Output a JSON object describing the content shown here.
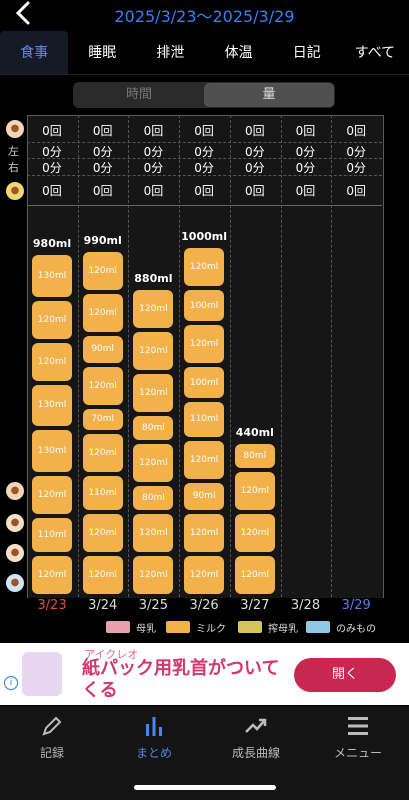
{
  "header": {
    "date_range": "2025/3/23〜2025/3/29"
  },
  "tabs": [
    "食事",
    "睡眠",
    "排泄",
    "体温",
    "日記",
    "すべて"
  ],
  "segment": {
    "left": "時間",
    "right": "量"
  },
  "side_labels": {
    "left": "左",
    "right": "右"
  },
  "days": [
    {
      "date": "3/23",
      "color": "#e34b4b",
      "count1": "0回",
      "left": "0分",
      "right": "0分",
      "count2": "0回",
      "total": "980ml",
      "amounts": [
        "130ml",
        "120ml",
        "120ml",
        "130ml",
        "130ml",
        "120ml",
        "110ml",
        "120ml"
      ]
    },
    {
      "date": "3/24",
      "color": "#dddddd",
      "count1": "0回",
      "left": "0分",
      "right": "0分",
      "count2": "0回",
      "total": "990ml",
      "amounts": [
        "120ml",
        "120ml",
        "90ml",
        "120ml",
        "70ml",
        "120ml",
        "110ml",
        "120ml",
        "120ml"
      ]
    },
    {
      "date": "3/25",
      "color": "#dddddd",
      "count1": "0回",
      "left": "0分",
      "right": "0分",
      "count2": "0回",
      "total": "880ml",
      "amounts": [
        "120ml",
        "120ml",
        "120ml",
        "80ml",
        "120ml",
        "80ml",
        "120ml",
        "120ml"
      ]
    },
    {
      "date": "3/26",
      "color": "#dddddd",
      "count1": "0回",
      "left": "0分",
      "right": "0分",
      "count2": "0回",
      "total": "1000ml",
      "amounts": [
        "120ml",
        "100ml",
        "120ml",
        "100ml",
        "110ml",
        "120ml",
        "90ml",
        "120ml",
        "120ml"
      ]
    },
    {
      "date": "3/27",
      "color": "#dddddd",
      "count1": "0回",
      "left": "0分",
      "right": "0分",
      "count2": "0回",
      "total": "440ml",
      "amounts": [
        "80ml",
        "120ml",
        "120ml",
        "120ml"
      ]
    },
    {
      "date": "3/28",
      "color": "#dddddd",
      "count1": "0回",
      "left": "0分",
      "right": "0分",
      "count2": "0回",
      "total": "",
      "amounts": []
    },
    {
      "date": "3/29",
      "color": "#5b7df0",
      "count1": "0回",
      "left": "0分",
      "right": "0分",
      "count2": "0回",
      "total": "",
      "amounts": []
    }
  ],
  "legend": [
    {
      "label": "母乳",
      "color": "#e8a0ae"
    },
    {
      "label": "ミルク",
      "color": "#f2b14a"
    },
    {
      "label": "搾母乳",
      "color": "#d6c35e"
    },
    {
      "label": "のみもの",
      "color": "#8ec9e6"
    }
  ],
  "ad": {
    "brand": "アイクレオ",
    "title": "紙パック用乳首がついてくる",
    "button": "開く",
    "info_icon": "info-icon"
  },
  "nav": [
    {
      "label": "記録",
      "icon": "pencil-icon"
    },
    {
      "label": "まとめ",
      "icon": "bar-chart-icon"
    },
    {
      "label": "成長曲線",
      "icon": "trend-icon"
    },
    {
      "label": "メニュー",
      "icon": "menu-icon"
    }
  ]
}
